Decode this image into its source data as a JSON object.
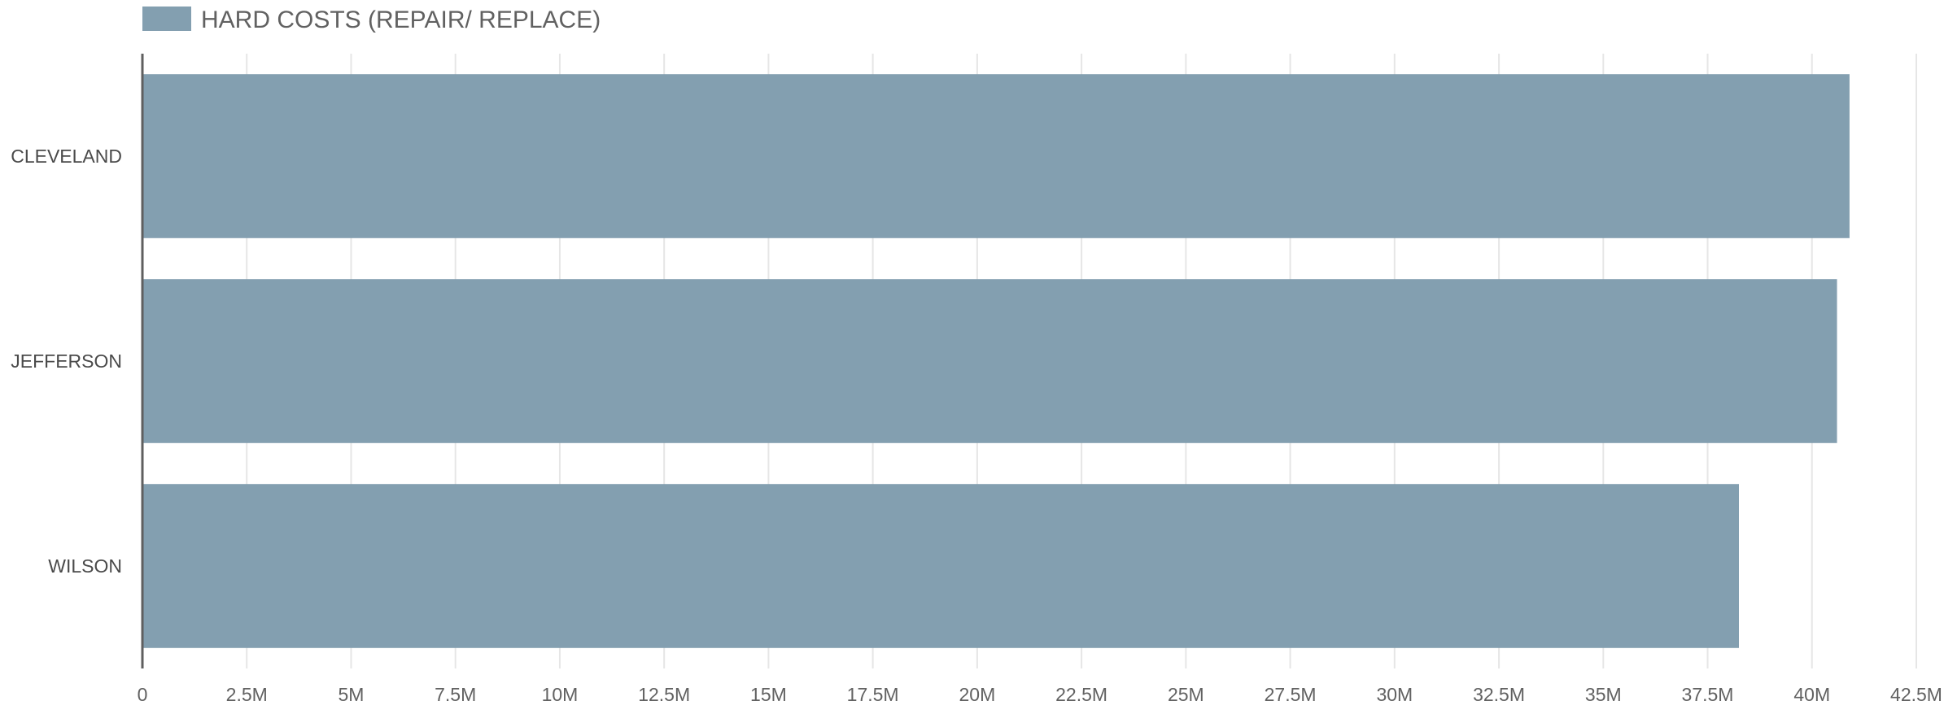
{
  "chart_data": {
    "type": "bar",
    "orientation": "horizontal",
    "categories": [
      "CLEVELAND",
      "JEFFERSON",
      "WILSON"
    ],
    "series": [
      {
        "name": "HARD COSTS (REPAIR/ REPLACE)",
        "values": [
          40900000,
          40600000,
          38250000
        ],
        "color": "#839fb0"
      }
    ],
    "xlim": [
      0,
      42500000
    ],
    "x_ticks": [
      0,
      2500000,
      5000000,
      7500000,
      10000000,
      12500000,
      15000000,
      17500000,
      20000000,
      22500000,
      25000000,
      27500000,
      30000000,
      32500000,
      35000000,
      37500000,
      40000000,
      42500000
    ],
    "x_tick_labels": [
      "0",
      "2.5M",
      "5M",
      "7.5M",
      "10M",
      "12.5M",
      "15M",
      "17.5M",
      "20M",
      "22.5M",
      "25M",
      "27.5M",
      "30M",
      "32.5M",
      "35M",
      "37.5M",
      "40M",
      "42.5M"
    ],
    "title": "",
    "xlabel": "",
    "ylabel": "",
    "grid": true,
    "legend_position": "top-left",
    "colors": {
      "bar": "#839fb0",
      "grid": "#e6e6e6",
      "axis": "#5f5f5f"
    }
  }
}
